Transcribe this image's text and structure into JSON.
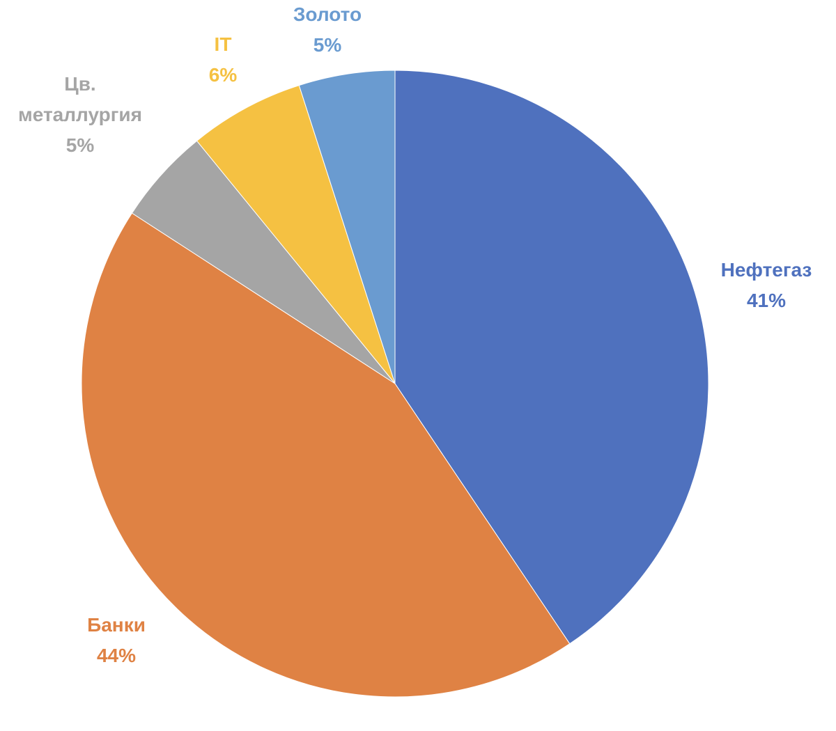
{
  "chart_data": {
    "type": "pie",
    "categories": [
      "Нефтегаз",
      "Банки",
      "Цв. металлургия",
      "IT",
      "Золото"
    ],
    "values": [
      41,
      44,
      5,
      6,
      5
    ],
    "value_labels": [
      "41%",
      "44%",
      "5%",
      "6%",
      "5%"
    ],
    "colors": [
      "#4f71be",
      "#df8244",
      "#a5a5a5",
      "#f5c142",
      "#6a9bd0"
    ]
  }
}
